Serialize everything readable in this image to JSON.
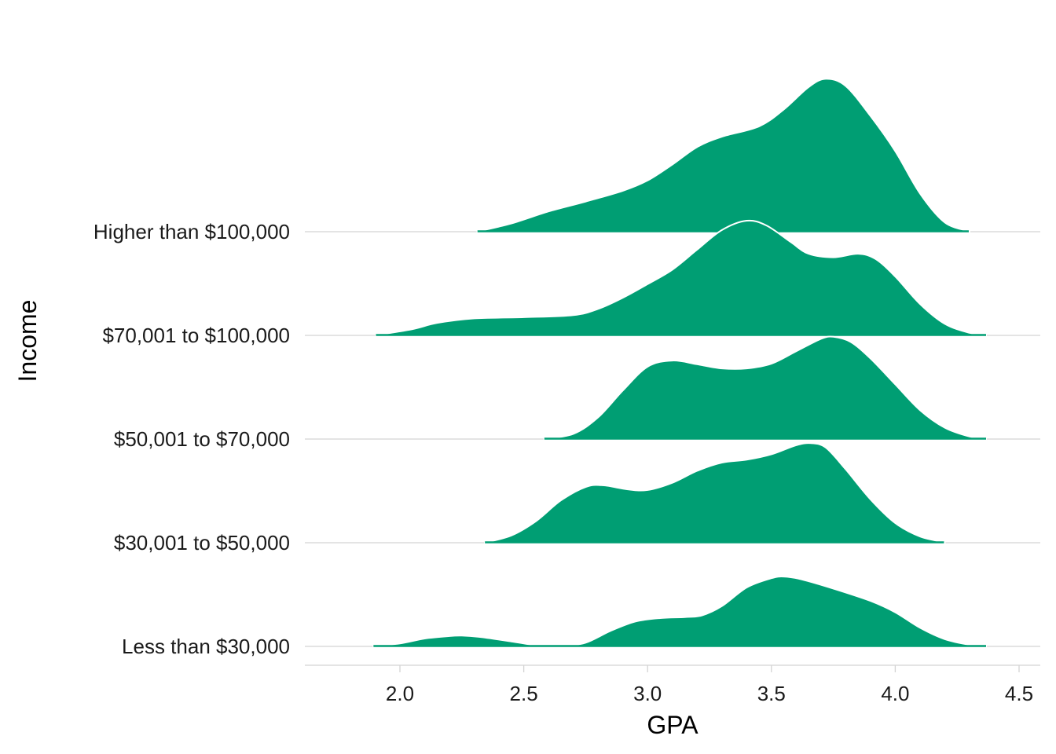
{
  "chart_data": {
    "type": "ridgeline",
    "xlabel": "GPA",
    "ylabel": "Income",
    "xlim": [
      1.6,
      4.6
    ],
    "x_ticks": [
      2.0,
      2.5,
      3.0,
      3.5,
      4.0,
      4.5
    ],
    "x_tick_labels": [
      "2.0",
      "2.5",
      "3.0",
      "3.5",
      "4.0",
      "4.5"
    ],
    "grid": "horizontal",
    "fill_color": "#009E73",
    "outline_color": "#FFFFFF",
    "categories": [
      "Less than $30,000",
      "$30,001 to $50,000",
      "$50,001 to $70,000",
      "$70,001 to $100,000",
      "Higher than $100,000"
    ],
    "series": [
      {
        "name": "Less than $30,000",
        "points": [
          [
            1.89,
            0
          ],
          [
            2.0,
            0.14
          ],
          [
            2.1,
            0.38
          ],
          [
            2.2,
            0.5
          ],
          [
            2.25,
            0.52
          ],
          [
            2.32,
            0.46
          ],
          [
            2.45,
            0.24
          ],
          [
            2.55,
            0.06
          ],
          [
            2.65,
            0.02
          ],
          [
            2.75,
            0.18
          ],
          [
            2.85,
            0.75
          ],
          [
            2.95,
            1.2
          ],
          [
            3.05,
            1.37
          ],
          [
            3.15,
            1.42
          ],
          [
            3.22,
            1.5
          ],
          [
            3.3,
            1.95
          ],
          [
            3.4,
            2.85
          ],
          [
            3.5,
            3.3
          ],
          [
            3.55,
            3.38
          ],
          [
            3.62,
            3.25
          ],
          [
            3.75,
            2.8
          ],
          [
            3.9,
            2.2
          ],
          [
            4.0,
            1.65
          ],
          [
            4.1,
            0.9
          ],
          [
            4.2,
            0.35
          ],
          [
            4.3,
            0.08
          ],
          [
            4.37,
            0
          ]
        ]
      },
      {
        "name": "$30,001 to $50,000",
        "points": [
          [
            2.34,
            0
          ],
          [
            2.45,
            0.35
          ],
          [
            2.55,
            1.05
          ],
          [
            2.65,
            2.05
          ],
          [
            2.75,
            2.7
          ],
          [
            2.82,
            2.78
          ],
          [
            2.92,
            2.58
          ],
          [
            3.0,
            2.55
          ],
          [
            3.1,
            2.9
          ],
          [
            3.2,
            3.48
          ],
          [
            3.3,
            3.88
          ],
          [
            3.4,
            4.02
          ],
          [
            3.5,
            4.28
          ],
          [
            3.6,
            4.72
          ],
          [
            3.66,
            4.82
          ],
          [
            3.72,
            4.6
          ],
          [
            3.8,
            3.55
          ],
          [
            3.9,
            2.1
          ],
          [
            4.0,
            0.95
          ],
          [
            4.1,
            0.3
          ],
          [
            4.2,
            0.02
          ]
        ]
      },
      {
        "name": "$50,001 to $70,000",
        "points": [
          [
            2.58,
            0
          ],
          [
            2.7,
            0.25
          ],
          [
            2.8,
            1.05
          ],
          [
            2.9,
            2.35
          ],
          [
            3.0,
            3.5
          ],
          [
            3.1,
            3.8
          ],
          [
            3.2,
            3.62
          ],
          [
            3.3,
            3.42
          ],
          [
            3.4,
            3.42
          ],
          [
            3.5,
            3.65
          ],
          [
            3.6,
            4.25
          ],
          [
            3.7,
            4.85
          ],
          [
            3.75,
            4.95
          ],
          [
            3.82,
            4.7
          ],
          [
            3.9,
            3.9
          ],
          [
            4.0,
            2.65
          ],
          [
            4.1,
            1.4
          ],
          [
            4.2,
            0.55
          ],
          [
            4.3,
            0.12
          ],
          [
            4.37,
            0
          ]
        ]
      },
      {
        "name": "$70,001 to $100,000",
        "points": [
          [
            1.9,
            0
          ],
          [
            2.05,
            0.3
          ],
          [
            2.15,
            0.6
          ],
          [
            2.3,
            0.82
          ],
          [
            2.5,
            0.88
          ],
          [
            2.7,
            0.98
          ],
          [
            2.8,
            1.28
          ],
          [
            2.9,
            1.82
          ],
          [
            3.0,
            2.48
          ],
          [
            3.1,
            3.18
          ],
          [
            3.2,
            4.15
          ],
          [
            3.3,
            5.1
          ],
          [
            3.4,
            5.55
          ],
          [
            3.48,
            5.32
          ],
          [
            3.58,
            4.5
          ],
          [
            3.65,
            3.95
          ],
          [
            3.75,
            3.78
          ],
          [
            3.85,
            3.95
          ],
          [
            3.92,
            3.7
          ],
          [
            4.0,
            2.85
          ],
          [
            4.1,
            1.52
          ],
          [
            4.2,
            0.56
          ],
          [
            4.3,
            0.12
          ],
          [
            4.37,
            0
          ]
        ]
      },
      {
        "name": "Higher than $100,000",
        "points": [
          [
            2.31,
            0
          ],
          [
            2.45,
            0.4
          ],
          [
            2.6,
            0.98
          ],
          [
            2.75,
            1.46
          ],
          [
            2.9,
            1.98
          ],
          [
            3.0,
            2.48
          ],
          [
            3.1,
            3.25
          ],
          [
            3.2,
            4.1
          ],
          [
            3.3,
            4.6
          ],
          [
            3.45,
            5.1
          ],
          [
            3.55,
            5.92
          ],
          [
            3.65,
            7.0
          ],
          [
            3.72,
            7.4
          ],
          [
            3.8,
            7.05
          ],
          [
            3.9,
            5.6
          ],
          [
            4.0,
            3.9
          ],
          [
            4.1,
            1.85
          ],
          [
            4.2,
            0.45
          ],
          [
            4.3,
            0.02
          ]
        ]
      }
    ]
  }
}
